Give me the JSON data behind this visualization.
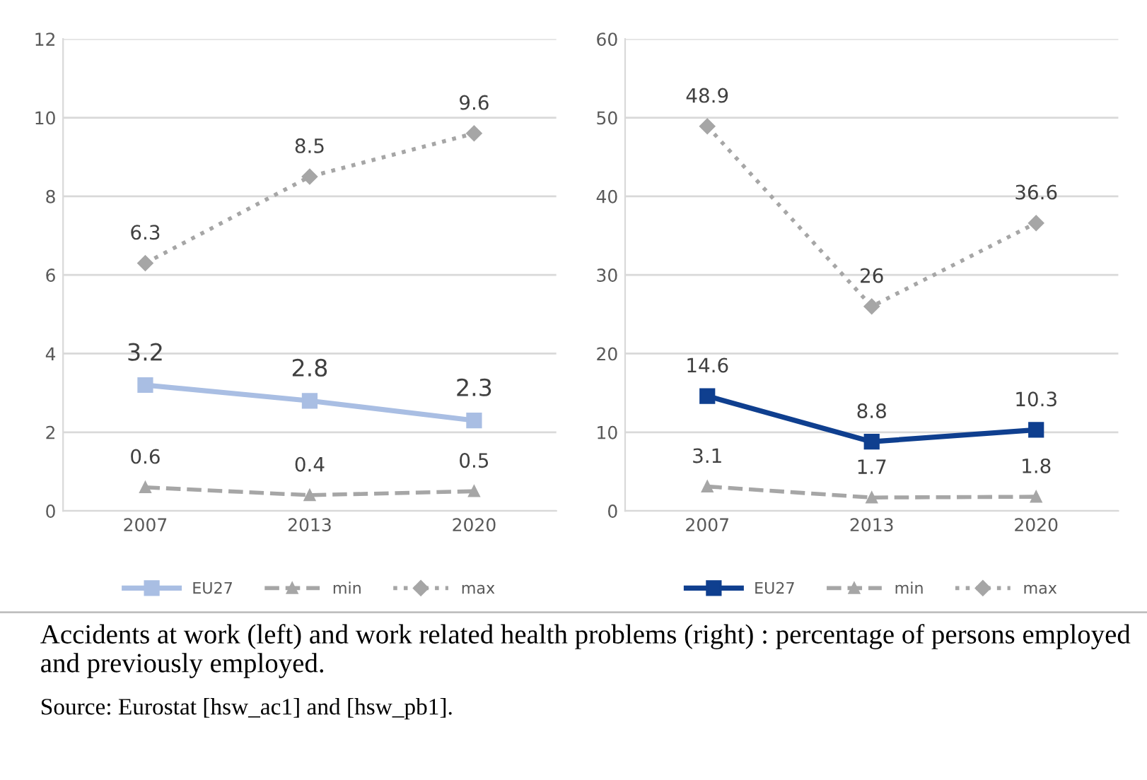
{
  "chart_data": [
    {
      "type": "line",
      "categories": [
        "2007",
        "2013",
        "2020"
      ],
      "series": [
        {
          "name": "EU27",
          "color": "#a9bee3",
          "values": [
            3.2,
            2.8,
            2.3
          ],
          "marker": "square",
          "line_style": "solid"
        },
        {
          "name": "min",
          "color": "#a6a6a6",
          "values": [
            0.6,
            0.4,
            0.5
          ],
          "marker": "triangle",
          "line_style": "dashed"
        },
        {
          "name": "max",
          "color": "#a6a6a6",
          "values": [
            6.3,
            8.5,
            9.6
          ],
          "marker": "diamond",
          "line_style": "dotted"
        }
      ],
      "ylim": [
        0,
        12
      ],
      "yticks": [
        0,
        2,
        4,
        6,
        8,
        10,
        12
      ],
      "grid": "y",
      "legend": "bottom",
      "data_labels": true,
      "annotations": [
        "Accidents at work (left) and work related health problems (right) : percentage of persons employed and previously employed.",
        "Source: Eurostat [hsw_ac1] and [hsw_pb1]."
      ]
    },
    {
      "type": "line",
      "categories": [
        "2007",
        "2013",
        "2020"
      ],
      "series": [
        {
          "name": "EU27",
          "color": "#0f3f8f",
          "values": [
            14.6,
            8.8,
            10.3
          ],
          "marker": "square",
          "line_style": "solid"
        },
        {
          "name": "min",
          "color": "#a6a6a6",
          "values": [
            3.1,
            1.7,
            1.8
          ],
          "marker": "triangle",
          "line_style": "dashed"
        },
        {
          "name": "max",
          "color": "#a6a6a6",
          "values": [
            48.9,
            26,
            36.6
          ],
          "marker": "diamond",
          "line_style": "dotted"
        }
      ],
      "ylim": [
        0,
        60
      ],
      "yticks": [
        0,
        10,
        20,
        30,
        40,
        50,
        60
      ],
      "grid": "y",
      "legend": "bottom",
      "data_labels": true
    }
  ]
}
